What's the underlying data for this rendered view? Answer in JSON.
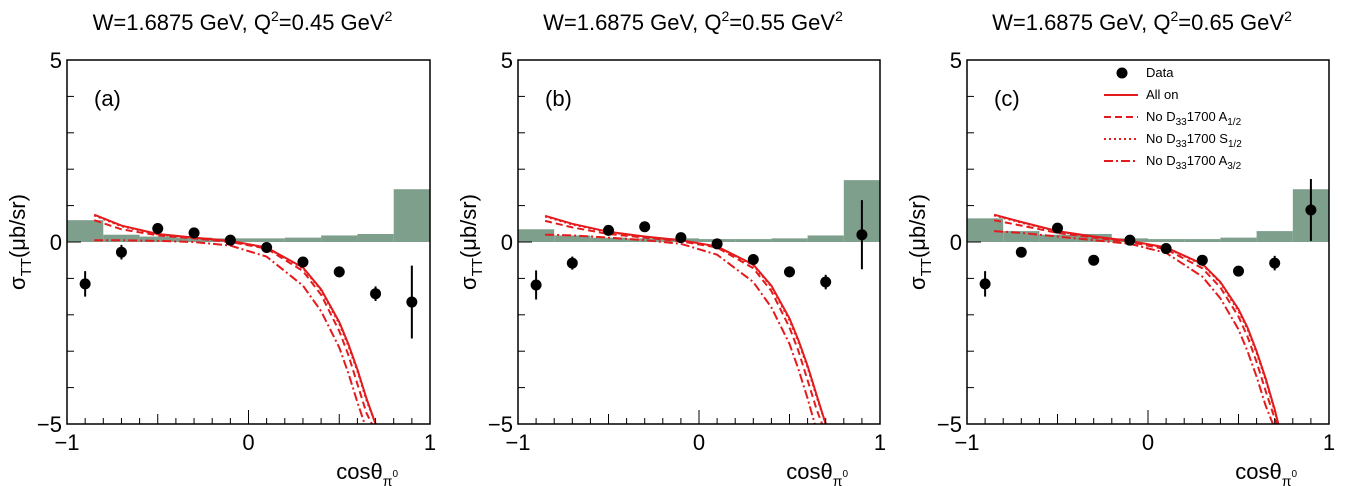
{
  "figure": {
    "ylabel_main": "σ",
    "ylabel_sub": "TT",
    "ylabel_unit": "(μb/sr)",
    "xlabel_main": "cosθ",
    "xlabel_sub": "π",
    "xlabel_sup": "0"
  },
  "legend": {
    "placement": "top-right of panel (c)",
    "entries": [
      {
        "kind": "marker",
        "parts": [
          {
            "t": "Data"
          }
        ]
      },
      {
        "kind": "solid",
        "parts": [
          {
            "t": "All on"
          }
        ]
      },
      {
        "kind": "dashed",
        "parts": [
          {
            "t": "No D"
          },
          {
            "t": "33",
            "sub": true
          },
          {
            "t": "1700 A"
          },
          {
            "t": "1/2",
            "sub": true
          }
        ]
      },
      {
        "kind": "dotted",
        "parts": [
          {
            "t": "No D"
          },
          {
            "t": "33",
            "sub": true
          },
          {
            "t": "1700 S"
          },
          {
            "t": "1/2",
            "sub": true
          }
        ]
      },
      {
        "kind": "dashdot",
        "parts": [
          {
            "t": "No  D"
          },
          {
            "t": "33",
            "sub": true
          },
          {
            "t": "1700 A"
          },
          {
            "t": "3/2",
            "sub": true
          }
        ]
      }
    ]
  },
  "colors": {
    "model_curves": "#e41a1c",
    "systematic_band": "#7f9f8d",
    "data": "#000000"
  },
  "chart_data": [
    {
      "type": "scatter",
      "label": "(a)",
      "title": {
        "pre": "W=1.6875 GeV, Q",
        "sup1": "2",
        "mid": "=0.45 GeV",
        "sup2": "2"
      },
      "xlim": [
        -1,
        1
      ],
      "ylim": [
        -5,
        5
      ],
      "xticks": [
        "−1",
        "0",
        "1"
      ],
      "yticks": [
        "−5",
        "0",
        "5"
      ],
      "data": {
        "x": [
          -0.9,
          -0.7,
          -0.5,
          -0.3,
          -0.1,
          0.1,
          0.3,
          0.5,
          0.7,
          0.9
        ],
        "y": [
          -1.15,
          -0.28,
          0.37,
          0.25,
          0.05,
          -0.15,
          -0.55,
          -0.82,
          -1.42,
          -1.65
        ],
        "err": [
          0.35,
          0.2,
          0.15,
          0.12,
          0.1,
          0.1,
          0.12,
          0.15,
          0.2,
          1.0
        ]
      },
      "systematics": {
        "edges": [
          -1,
          -0.8,
          -0.6,
          -0.4,
          -0.2,
          0,
          0.2,
          0.4,
          0.6,
          0.8,
          1
        ],
        "heights": [
          0.6,
          0.2,
          0.15,
          0.12,
          0.1,
          0.1,
          0.12,
          0.18,
          0.22,
          1.45
        ]
      },
      "curves": [
        {
          "style": "solid",
          "x": [
            -0.85,
            -0.7,
            -0.5,
            -0.3,
            -0.1,
            0.1,
            0.3,
            0.4,
            0.5,
            0.55,
            0.6,
            0.65,
            0.7
          ],
          "y": [
            0.75,
            0.45,
            0.22,
            0.12,
            0.03,
            -0.15,
            -0.7,
            -1.3,
            -2.2,
            -2.8,
            -3.5,
            -4.3,
            -5.0
          ]
        },
        {
          "style": "dashed",
          "x": [
            -0.85,
            -0.7,
            -0.5,
            -0.3,
            -0.1,
            0.1,
            0.3,
            0.4,
            0.5,
            0.55,
            0.6,
            0.65,
            0.68
          ],
          "y": [
            0.6,
            0.35,
            0.18,
            0.1,
            0.0,
            -0.18,
            -0.8,
            -1.45,
            -2.45,
            -3.1,
            -3.9,
            -4.7,
            -5.0
          ]
        },
        {
          "style": "dotted",
          "x": [
            -0.85,
            -0.7,
            -0.5,
            -0.3,
            -0.1,
            0.1,
            0.3,
            0.4,
            0.5,
            0.55,
            0.6,
            0.65,
            0.7
          ],
          "y": [
            0.73,
            0.43,
            0.21,
            0.11,
            0.02,
            -0.16,
            -0.72,
            -1.33,
            -2.25,
            -2.85,
            -3.55,
            -4.35,
            -5.0
          ]
        },
        {
          "style": "dashdot",
          "x": [
            -0.85,
            -0.7,
            -0.5,
            -0.3,
            -0.1,
            0.1,
            0.3,
            0.4,
            0.5,
            0.55,
            0.6,
            0.64
          ],
          "y": [
            0.05,
            0.05,
            0.03,
            0.0,
            -0.1,
            -0.4,
            -1.2,
            -1.9,
            -2.9,
            -3.6,
            -4.4,
            -5.0
          ]
        }
      ]
    },
    {
      "type": "scatter",
      "label": "(b)",
      "title": {
        "pre": "W=1.6875 GeV, Q",
        "sup1": "2",
        "mid": "=0.55 GeV",
        "sup2": "2"
      },
      "xlim": [
        -1,
        1
      ],
      "ylim": [
        -5,
        5
      ],
      "xticks": [
        "−1",
        "0",
        "1"
      ],
      "yticks": [
        "−5",
        "0",
        "5"
      ],
      "data": {
        "x": [
          -0.9,
          -0.7,
          -0.5,
          -0.3,
          -0.1,
          0.1,
          0.3,
          0.5,
          0.7,
          0.9
        ],
        "y": [
          -1.18,
          -0.58,
          0.32,
          0.42,
          0.12,
          -0.05,
          -0.48,
          -0.82,
          -1.1,
          0.2
        ],
        "err": [
          0.4,
          0.18,
          0.12,
          0.12,
          0.1,
          0.1,
          0.12,
          0.15,
          0.2,
          0.95
        ]
      },
      "systematics": {
        "edges": [
          -1,
          -0.8,
          -0.6,
          -0.4,
          -0.2,
          0,
          0.2,
          0.4,
          0.6,
          0.8,
          1
        ],
        "heights": [
          0.35,
          0.18,
          0.12,
          0.1,
          0.1,
          0.08,
          0.08,
          0.1,
          0.18,
          1.7
        ]
      },
      "curves": [
        {
          "style": "solid",
          "x": [
            -0.85,
            -0.7,
            -0.5,
            -0.3,
            -0.1,
            0.1,
            0.3,
            0.4,
            0.5,
            0.55,
            0.6,
            0.65,
            0.7
          ],
          "y": [
            0.72,
            0.5,
            0.28,
            0.15,
            0.05,
            -0.12,
            -0.62,
            -1.2,
            -2.1,
            -2.7,
            -3.4,
            -4.2,
            -5.0
          ]
        },
        {
          "style": "dashed",
          "x": [
            -0.85,
            -0.7,
            -0.5,
            -0.3,
            -0.1,
            0.1,
            0.3,
            0.4,
            0.5,
            0.55,
            0.6,
            0.65,
            0.68
          ],
          "y": [
            0.58,
            0.4,
            0.22,
            0.12,
            0.02,
            -0.15,
            -0.72,
            -1.35,
            -2.35,
            -3.0,
            -3.8,
            -4.6,
            -5.0
          ]
        },
        {
          "style": "dotted",
          "x": [
            -0.85,
            -0.7,
            -0.5,
            -0.3,
            -0.1,
            0.1,
            0.3,
            0.4,
            0.5,
            0.55,
            0.6,
            0.65,
            0.7
          ],
          "y": [
            0.7,
            0.48,
            0.27,
            0.14,
            0.04,
            -0.13,
            -0.64,
            -1.23,
            -2.15,
            -2.75,
            -3.45,
            -4.25,
            -5.0
          ]
        },
        {
          "style": "dashdot",
          "x": [
            -0.85,
            -0.7,
            -0.5,
            -0.3,
            -0.1,
            0.1,
            0.3,
            0.4,
            0.5,
            0.55,
            0.6,
            0.64
          ],
          "y": [
            0.2,
            0.18,
            0.12,
            0.05,
            -0.05,
            -0.35,
            -1.1,
            -1.8,
            -2.8,
            -3.5,
            -4.3,
            -5.0
          ]
        }
      ]
    },
    {
      "type": "scatter",
      "label": "(c)",
      "title": {
        "pre": "W=1.6875 GeV, Q",
        "sup1": "2",
        "mid": "=0.65 GeV",
        "sup2": "2"
      },
      "xlim": [
        -1,
        1
      ],
      "ylim": [
        -5,
        5
      ],
      "xticks": [
        "−1",
        "0",
        "1"
      ],
      "yticks": [
        "−5",
        "0",
        "5"
      ],
      "data": {
        "x": [
          -0.9,
          -0.7,
          -0.5,
          -0.3,
          -0.1,
          0.1,
          0.3,
          0.5,
          0.7,
          0.9
        ],
        "y": [
          -1.15,
          -0.28,
          0.38,
          -0.5,
          0.05,
          -0.18,
          -0.5,
          -0.8,
          -0.58,
          0.88
        ],
        "err": [
          0.35,
          0.12,
          0.12,
          0.12,
          0.1,
          0.1,
          0.12,
          0.12,
          0.2,
          0.85
        ]
      },
      "systematics": {
        "edges": [
          -1,
          -0.8,
          -0.6,
          -0.4,
          -0.2,
          0,
          0.2,
          0.4,
          0.6,
          0.8,
          1
        ],
        "heights": [
          0.65,
          0.3,
          0.2,
          0.22,
          0.1,
          0.08,
          0.08,
          0.12,
          0.3,
          1.45
        ]
      },
      "curves": [
        {
          "style": "solid",
          "x": [
            -0.85,
            -0.7,
            -0.5,
            -0.3,
            -0.1,
            0.1,
            0.3,
            0.4,
            0.5,
            0.55,
            0.6,
            0.65,
            0.7,
            0.72
          ],
          "y": [
            0.75,
            0.55,
            0.3,
            0.15,
            0.03,
            -0.15,
            -0.6,
            -1.1,
            -1.85,
            -2.35,
            -3.0,
            -3.75,
            -4.6,
            -5.0
          ]
        },
        {
          "style": "dashed",
          "x": [
            -0.85,
            -0.7,
            -0.5,
            -0.3,
            -0.1,
            0.1,
            0.3,
            0.4,
            0.5,
            0.55,
            0.6,
            0.65,
            0.7,
            0.71
          ],
          "y": [
            0.6,
            0.45,
            0.25,
            0.12,
            0.0,
            -0.2,
            -0.72,
            -1.25,
            -2.05,
            -2.6,
            -3.3,
            -4.1,
            -4.85,
            -5.0
          ]
        },
        {
          "style": "dotted",
          "x": [
            -0.85,
            -0.7,
            -0.5,
            -0.3,
            -0.1,
            0.1,
            0.3,
            0.4,
            0.5,
            0.55,
            0.6,
            0.65,
            0.7,
            0.72
          ],
          "y": [
            0.73,
            0.53,
            0.29,
            0.14,
            0.02,
            -0.16,
            -0.62,
            -1.12,
            -1.9,
            -2.4,
            -3.05,
            -3.8,
            -4.65,
            -5.0
          ]
        },
        {
          "style": "dashdot",
          "x": [
            -0.85,
            -0.7,
            -0.5,
            -0.3,
            -0.1,
            0.1,
            0.3,
            0.4,
            0.5,
            0.55,
            0.6,
            0.65,
            0.69
          ],
          "y": [
            0.3,
            0.25,
            0.15,
            0.05,
            -0.05,
            -0.3,
            -0.95,
            -1.55,
            -2.4,
            -3.0,
            -3.7,
            -4.5,
            -5.0
          ]
        }
      ]
    }
  ]
}
